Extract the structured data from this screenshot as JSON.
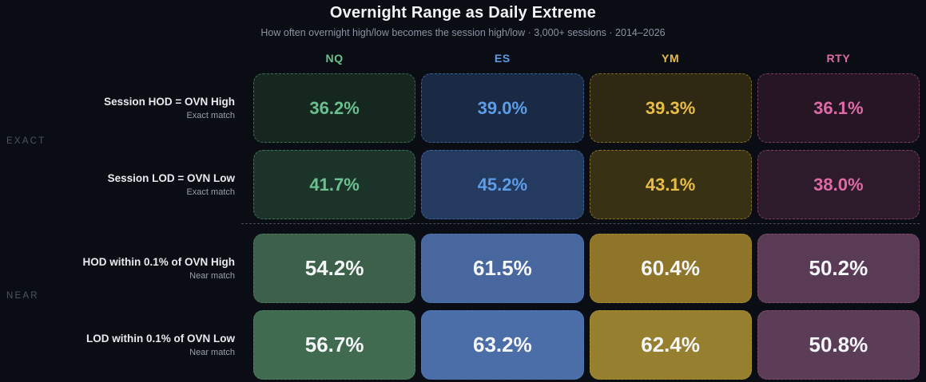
{
  "header": {
    "title": "Overnight Range as Daily Extreme",
    "subtitle": "How often overnight high/low becomes the session high/low · 3,000+ sessions · 2014–2026"
  },
  "chart_data": {
    "type": "heatmap",
    "unit": "%",
    "columns": [
      "NQ",
      "ES",
      "YM",
      "RTY"
    ],
    "column_accents": [
      "#6ac08f",
      "#5d9de8",
      "#e9bd45",
      "#de6ba6"
    ],
    "row_groups": [
      {
        "label": "EXACT"
      },
      {
        "label": "NEAR"
      }
    ],
    "rows": [
      {
        "label": "Session HOD = OVN High",
        "sublabel": "Exact match",
        "group": "EXACT",
        "values": [
          36.2,
          39.0,
          39.3,
          36.1
        ],
        "cell_bg": [
          "#16271f",
          "#1b2a44",
          "#2f2913",
          "#261624"
        ],
        "value_style": "accent"
      },
      {
        "label": "Session LOD = OVN Low",
        "sublabel": "Exact match",
        "group": "EXACT",
        "values": [
          41.7,
          45.2,
          43.1,
          38.0
        ],
        "cell_bg": [
          "#1c3329",
          "#243a5e",
          "#393114",
          "#2d1b2b"
        ],
        "value_style": "accent"
      },
      {
        "label": "HOD within 0.1% of OVN High",
        "sublabel": "Near match",
        "group": "NEAR",
        "values": [
          54.2,
          61.5,
          60.4,
          50.2
        ],
        "cell_bg": [
          "#3c6049",
          "#48679e",
          "#8f752a",
          "#593b55"
        ],
        "value_style": "white"
      },
      {
        "label": "LOD within 0.1% of OVN Low",
        "sublabel": "Near match",
        "group": "NEAR",
        "values": [
          56.7,
          63.2,
          62.4,
          50.8
        ],
        "cell_bg": [
          "#406b50",
          "#4c6ea8",
          "#968030",
          "#5c3d58"
        ],
        "value_style": "white"
      }
    ]
  }
}
